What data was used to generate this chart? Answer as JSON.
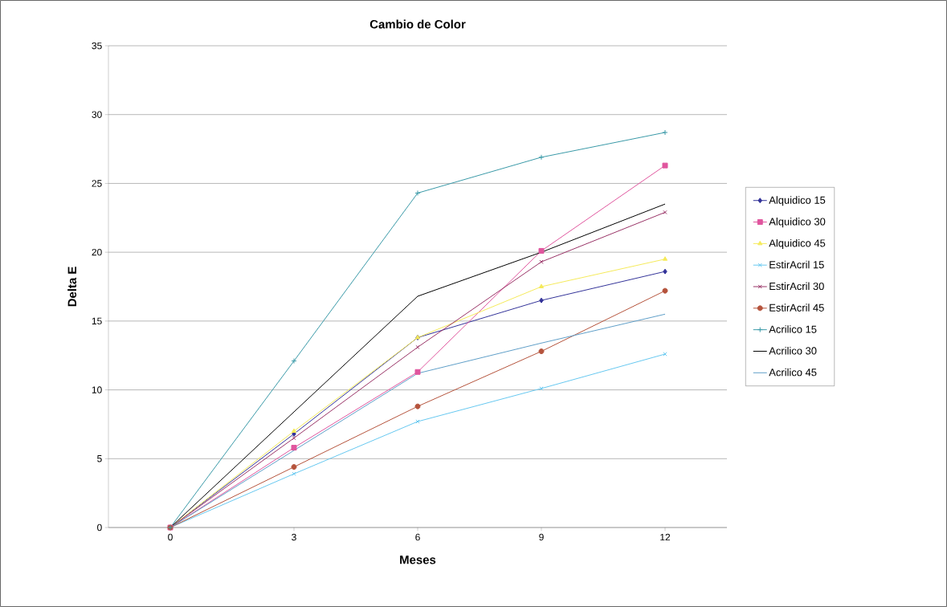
{
  "chart_data": {
    "type": "line",
    "title": "Cambio de Color",
    "xlabel": "Meses",
    "ylabel": "Delta E",
    "categories": [
      "0",
      "3",
      "6",
      "9",
      "12"
    ],
    "ylim": [
      0,
      35
    ],
    "yticks": [
      0,
      5,
      10,
      15,
      20,
      25,
      30,
      35
    ],
    "grid": "y",
    "legend": "right",
    "series": [
      {
        "name": "Alquidico 15",
        "color": "#333399",
        "marker": "diamond",
        "values": [
          0,
          6.8,
          13.8,
          16.5,
          18.6
        ]
      },
      {
        "name": "Alquidico 30",
        "color": "#e0559e",
        "marker": "square",
        "values": [
          0,
          5.8,
          11.3,
          20.1,
          26.3
        ]
      },
      {
        "name": "Alquidico 45",
        "color": "#f5ea5a",
        "marker": "triangle",
        "values": [
          0,
          7.0,
          13.8,
          17.5,
          19.5
        ]
      },
      {
        "name": "EstirAcril 15",
        "color": "#66c8f0",
        "marker": "cross",
        "values": [
          0,
          3.9,
          7.7,
          10.1,
          12.6
        ]
      },
      {
        "name": "EstirAcril 30",
        "color": "#993366",
        "marker": "cross",
        "values": [
          0,
          6.5,
          13.1,
          19.3,
          22.9
        ]
      },
      {
        "name": "EstirAcril 45",
        "color": "#b5533c",
        "marker": "circle",
        "values": [
          0,
          4.4,
          8.8,
          12.8,
          17.2
        ]
      },
      {
        "name": "Acrilico 15",
        "color": "#3a9aa8",
        "marker": "plus",
        "values": [
          0,
          12.1,
          24.3,
          26.9,
          28.7
        ]
      },
      {
        "name": "Acrilico 30",
        "color": "#000000",
        "marker": "none",
        "values": [
          0,
          8.4,
          16.8,
          20.0,
          23.5
        ]
      },
      {
        "name": "Acrilico 45",
        "color": "#5f9fc8",
        "marker": "none",
        "values": [
          0,
          5.6,
          11.2,
          13.4,
          15.5
        ]
      }
    ]
  }
}
